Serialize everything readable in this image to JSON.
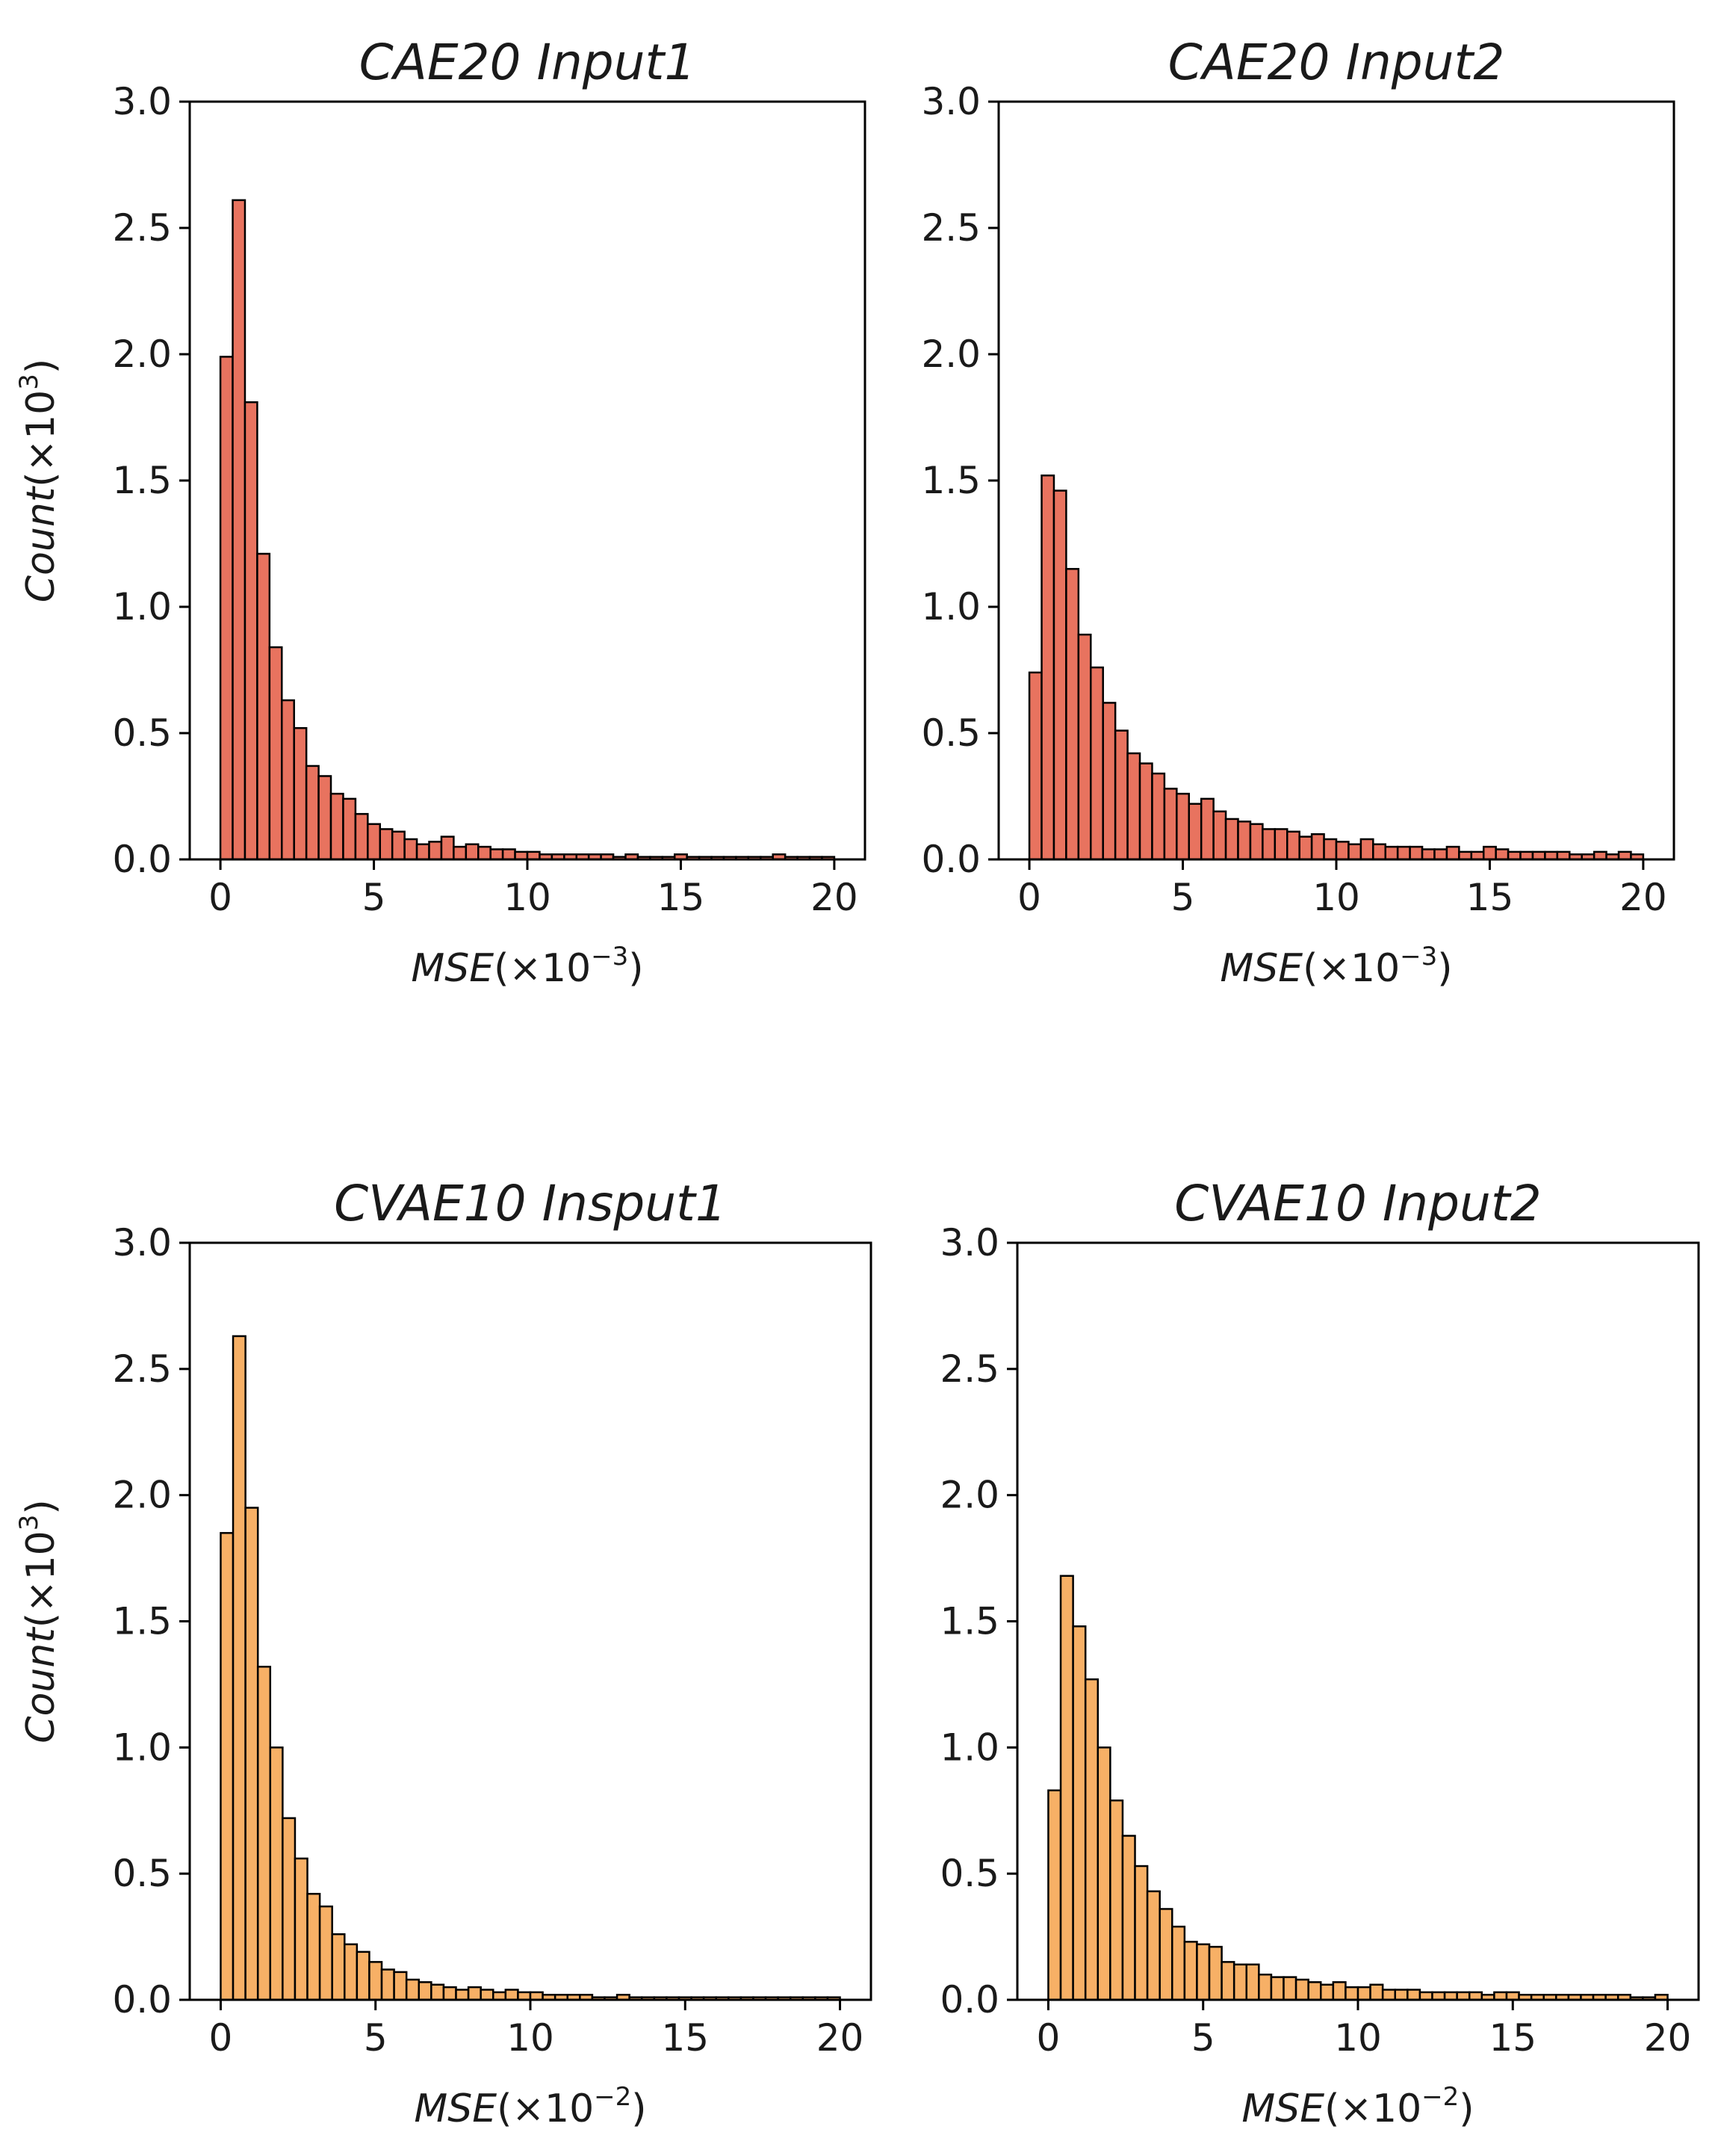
{
  "chart_data": [
    {
      "id": "p1",
      "type": "bar",
      "title": "CAE20 Input1",
      "xlabel": {
        "main": "MSE",
        "prefix": "(×10",
        "exp": "−3",
        "suffix": ")"
      },
      "ylabel": {
        "main": "Count",
        "prefix": "(×10",
        "exp": "3",
        "suffix": ")"
      },
      "xlim": [
        -1,
        21
      ],
      "ylim": [
        0,
        3
      ],
      "xticks": [
        0,
        5,
        10,
        15,
        20
      ],
      "yticks": [
        "0.0",
        "0.5",
        "1.0",
        "1.5",
        "2.0",
        "2.5",
        "3.0"
      ],
      "bin_width": 0.4,
      "bin_start": 0,
      "color": "#e8735f",
      "values": [
        1.99,
        2.61,
        1.81,
        1.21,
        0.84,
        0.63,
        0.52,
        0.37,
        0.33,
        0.26,
        0.24,
        0.18,
        0.14,
        0.12,
        0.11,
        0.08,
        0.06,
        0.07,
        0.09,
        0.05,
        0.06,
        0.05,
        0.04,
        0.04,
        0.03,
        0.03,
        0.02,
        0.02,
        0.02,
        0.02,
        0.02,
        0.02,
        0.01,
        0.02,
        0.01,
        0.01,
        0.01,
        0.02,
        0.01,
        0.01,
        0.01,
        0.01,
        0.01,
        0.01,
        0.01,
        0.02,
        0.01,
        0.01,
        0.01,
        0.01
      ]
    },
    {
      "id": "p2",
      "type": "bar",
      "title": "CAE20 Input2",
      "xlabel": {
        "main": "MSE",
        "prefix": "(×10",
        "exp": "−3",
        "suffix": ")"
      },
      "ylabel": null,
      "xlim": [
        -1,
        21
      ],
      "ylim": [
        0,
        3
      ],
      "xticks": [
        0,
        5,
        10,
        15,
        20
      ],
      "yticks": [
        "0.0",
        "0.5",
        "1.0",
        "1.5",
        "2.0",
        "2.5",
        "3.0"
      ],
      "bin_width": 0.4,
      "bin_start": 0,
      "color": "#e8735f",
      "values": [
        0.74,
        1.52,
        1.46,
        1.15,
        0.89,
        0.76,
        0.62,
        0.51,
        0.42,
        0.38,
        0.34,
        0.28,
        0.26,
        0.22,
        0.24,
        0.19,
        0.16,
        0.15,
        0.14,
        0.12,
        0.12,
        0.11,
        0.09,
        0.1,
        0.08,
        0.07,
        0.06,
        0.08,
        0.06,
        0.05,
        0.05,
        0.05,
        0.04,
        0.04,
        0.05,
        0.03,
        0.03,
        0.05,
        0.04,
        0.03,
        0.03,
        0.03,
        0.03,
        0.03,
        0.02,
        0.02,
        0.03,
        0.02,
        0.03,
        0.02
      ]
    },
    {
      "id": "p3",
      "type": "bar",
      "title": "CVAE10 Insput1",
      "xlabel": {
        "main": "MSE",
        "prefix": "(×10",
        "exp": "−2",
        "suffix": ")"
      },
      "ylabel": {
        "main": "Count",
        "prefix": "(×10",
        "exp": "3",
        "suffix": ")"
      },
      "xlim": [
        -1,
        21
      ],
      "ylim": [
        0,
        3
      ],
      "xticks": [
        0,
        5,
        10,
        15,
        20
      ],
      "yticks": [
        "0.0",
        "0.5",
        "1.0",
        "1.5",
        "2.0",
        "2.5",
        "3.0"
      ],
      "bin_width": 0.4,
      "bin_start": 0,
      "color": "#f7b066",
      "values": [
        1.85,
        2.63,
        1.95,
        1.32,
        1.0,
        0.72,
        0.56,
        0.42,
        0.37,
        0.26,
        0.22,
        0.19,
        0.15,
        0.12,
        0.11,
        0.08,
        0.07,
        0.06,
        0.05,
        0.04,
        0.05,
        0.04,
        0.03,
        0.04,
        0.03,
        0.03,
        0.02,
        0.02,
        0.02,
        0.02,
        0.01,
        0.01,
        0.02,
        0.01,
        0.01,
        0.01,
        0.01,
        0.01,
        0.01,
        0.01,
        0.01,
        0.01,
        0.01,
        0.01,
        0.01,
        0.01,
        0.01,
        0.01,
        0.01,
        0.01
      ]
    },
    {
      "id": "p4",
      "type": "bar",
      "title": "CVAE10 Input2",
      "xlabel": {
        "main": "MSE",
        "prefix": "(×10",
        "exp": "−2",
        "suffix": ")"
      },
      "ylabel": null,
      "xlim": [
        -1,
        21
      ],
      "ylim": [
        0,
        3
      ],
      "xticks": [
        0,
        5,
        10,
        15,
        20
      ],
      "yticks": [
        "0.0",
        "0.5",
        "1.0",
        "1.5",
        "2.0",
        "2.5",
        "3.0"
      ],
      "bin_width": 0.4,
      "bin_start": 0,
      "color": "#f7b066",
      "values": [
        0.83,
        1.68,
        1.48,
        1.27,
        1.0,
        0.79,
        0.65,
        0.53,
        0.43,
        0.36,
        0.29,
        0.23,
        0.22,
        0.21,
        0.15,
        0.14,
        0.14,
        0.1,
        0.09,
        0.09,
        0.08,
        0.07,
        0.06,
        0.07,
        0.05,
        0.05,
        0.06,
        0.04,
        0.04,
        0.04,
        0.03,
        0.03,
        0.03,
        0.03,
        0.03,
        0.02,
        0.03,
        0.03,
        0.02,
        0.02,
        0.02,
        0.02,
        0.02,
        0.02,
        0.02,
        0.02,
        0.02,
        0.01,
        0.01,
        0.02
      ]
    }
  ]
}
